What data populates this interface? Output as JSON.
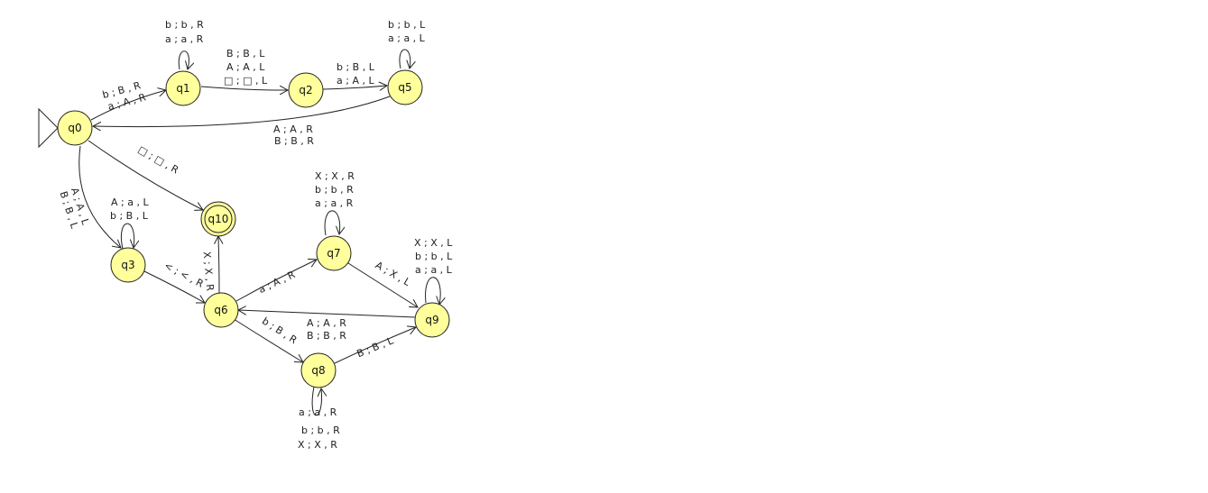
{
  "diagram": {
    "initial_state": "q0",
    "states": {
      "q0": {
        "label": "q0",
        "final": false
      },
      "q1": {
        "label": "q1",
        "final": false
      },
      "q2": {
        "label": "q2",
        "final": false
      },
      "q5": {
        "label": "q5",
        "final": false
      },
      "q3": {
        "label": "q3",
        "final": false
      },
      "q10": {
        "label": "q10",
        "final": true
      },
      "q6": {
        "label": "q6",
        "final": false
      },
      "q7": {
        "label": "q7",
        "final": false
      },
      "q8": {
        "label": "q8",
        "final": false
      },
      "q9": {
        "label": "q9",
        "final": false
      }
    },
    "colors": {
      "state_fill": "#ffff9c",
      "stroke": "#222222"
    },
    "transitions": {
      "q0_q1": {
        "from": "q0",
        "to": "q1",
        "labels": [
          "b ; B , R",
          "a ; A , R"
        ]
      },
      "q1_loop": {
        "from": "q1",
        "to": "q1",
        "labels": [
          "b ; b , R",
          "a ; a , R"
        ]
      },
      "q1_q2": {
        "from": "q1",
        "to": "q2",
        "labels": [
          "B ; B , L",
          "A ; A , L",
          "□ ; □ , L"
        ]
      },
      "q2_q5": {
        "from": "q2",
        "to": "q5",
        "labels": [
          "b ; B , L",
          "a ; A , L"
        ]
      },
      "q5_loop": {
        "from": "q5",
        "to": "q5",
        "labels": [
          "b ; b , L",
          "a ; a , L"
        ]
      },
      "q5_q0": {
        "from": "q5",
        "to": "q0",
        "labels": [
          "A ; A , R",
          "B ; B , R"
        ]
      },
      "q0_q10": {
        "from": "q0",
        "to": "q10",
        "labels": [
          "□ ; □ , R"
        ]
      },
      "q0_q3": {
        "from": "q0",
        "to": "q3",
        "labels": [
          "A ; A , L",
          "B ; B , L"
        ]
      },
      "q3_loop": {
        "from": "q3",
        "to": "q3",
        "labels": [
          "A ; a , L",
          "b ; B , L"
        ]
      },
      "q3_q6": {
        "from": "q3",
        "to": "q6",
        "labels": [
          "< ; < , R"
        ]
      },
      "q6_q10": {
        "from": "q6",
        "to": "q10",
        "labels": [
          "X ; X , R"
        ]
      },
      "q6_q7": {
        "from": "q6",
        "to": "q7",
        "labels": [
          "a ; A , R"
        ]
      },
      "q7_loop": {
        "from": "q7",
        "to": "q7",
        "labels": [
          "X ; X , R",
          "b ; b , R",
          "a ; a , R"
        ]
      },
      "q7_q9": {
        "from": "q7",
        "to": "q9",
        "labels": [
          "A ; X , L"
        ]
      },
      "q9_loop": {
        "from": "q9",
        "to": "q9",
        "labels": [
          "X ; X , L",
          "b ; b , L",
          "a ; a , L"
        ]
      },
      "q9_q6": {
        "from": "q9",
        "to": "q6",
        "labels": [
          "A ; A , R",
          "B ; B , R"
        ]
      },
      "q6_q8": {
        "from": "q6",
        "to": "q8",
        "labels": [
          "b ; B , R"
        ]
      },
      "q8_q9": {
        "from": "q8",
        "to": "q9",
        "labels": [
          "B ; B , L"
        ]
      },
      "q8_loop": {
        "from": "q8",
        "to": "q8",
        "labels": [
          "a ; a , R",
          "b ; b , R",
          "X ; X , R"
        ]
      }
    }
  }
}
